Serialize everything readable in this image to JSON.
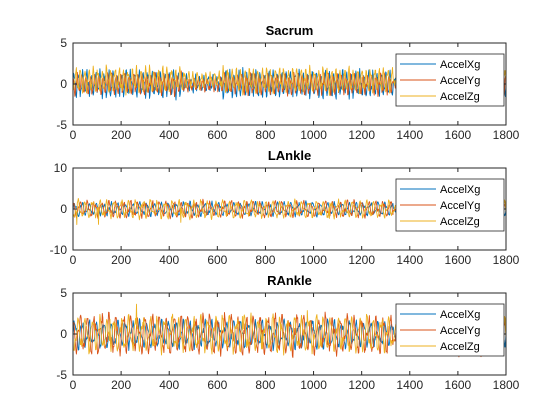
{
  "chart_data": [
    {
      "type": "line",
      "title": "Sacrum",
      "xlim": [
        0,
        1800
      ],
      "ylim": [
        -5,
        5
      ],
      "xticks": [
        0,
        200,
        400,
        600,
        800,
        1000,
        1200,
        1400,
        1600,
        1800
      ],
      "yticks": [
        -5,
        0,
        5
      ],
      "legend": "top-right",
      "grid": false,
      "series": [
        {
          "name": "AccelXg",
          "color": "#0072BD",
          "amplitude": 1.5,
          "offset": 0.0
        },
        {
          "name": "AccelYg",
          "color": "#D95319",
          "amplitude": 1.2,
          "offset": 0.0
        },
        {
          "name": "AccelZg",
          "color": "#EDB120",
          "amplitude": 1.4,
          "offset": 0.5
        }
      ]
    },
    {
      "type": "line",
      "title": "LAnkle",
      "xlim": [
        0,
        1800
      ],
      "ylim": [
        -10,
        10
      ],
      "xticks": [
        0,
        200,
        400,
        600,
        800,
        1000,
        1200,
        1400,
        1600,
        1800
      ],
      "yticks": [
        -10,
        0,
        10
      ],
      "legend": "top-right",
      "grid": false,
      "series": [
        {
          "name": "AccelXg",
          "color": "#0072BD",
          "amplitude": 1.5,
          "offset": 0.0
        },
        {
          "name": "AccelYg",
          "color": "#D95319",
          "amplitude": 1.8,
          "offset": 0.0
        },
        {
          "name": "AccelZg",
          "color": "#EDB120",
          "amplitude": 2.0,
          "offset": 0.0
        }
      ]
    },
    {
      "type": "line",
      "title": "RAnkle",
      "xlim": [
        0,
        1800
      ],
      "ylim": [
        -5,
        5
      ],
      "xticks": [
        0,
        200,
        400,
        600,
        800,
        1000,
        1200,
        1400,
        1600,
        1800
      ],
      "yticks": [
        -5,
        0,
        5
      ],
      "legend": "top-right",
      "grid": false,
      "series": [
        {
          "name": "AccelXg",
          "color": "#0072BD",
          "amplitude": 1.5,
          "offset": 0.0
        },
        {
          "name": "AccelYg",
          "color": "#D95319",
          "amplitude": 2.2,
          "offset": 0.0
        },
        {
          "name": "AccelZg",
          "color": "#EDB120",
          "amplitude": 2.0,
          "offset": 0.0
        }
      ]
    }
  ]
}
